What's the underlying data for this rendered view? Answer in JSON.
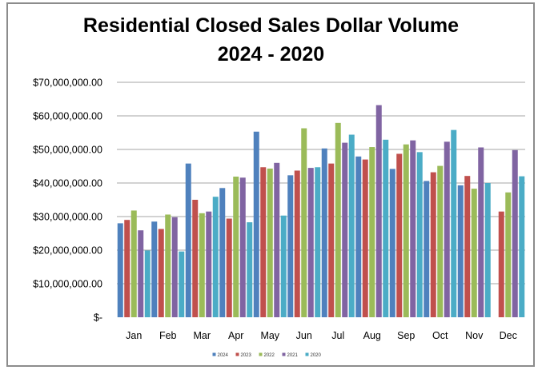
{
  "chart_data": {
    "type": "bar",
    "title": "Residential Closed Sales Dollar Volume",
    "subtitle": "2024 - 2020",
    "xlabel": "",
    "ylabel": "",
    "ylim": [
      0,
      70000000
    ],
    "grid": true,
    "legend_position": "bottom",
    "y_ticks": [
      {
        "value": 0,
        "label": "$-"
      },
      {
        "value": 10000000,
        "label": "$10,000,000.00"
      },
      {
        "value": 20000000,
        "label": "$20,000,000.00"
      },
      {
        "value": 30000000,
        "label": "$30,000,000.00"
      },
      {
        "value": 40000000,
        "label": "$40,000,000.00"
      },
      {
        "value": 50000000,
        "label": "$50,000,000.00"
      },
      {
        "value": 60000000,
        "label": "$60,000,000.00"
      },
      {
        "value": 70000000,
        "label": "$70,000,000.00"
      }
    ],
    "categories": [
      "Jan",
      "Feb",
      "Mar",
      "Apr",
      "May",
      "Jun",
      "Jul",
      "Aug",
      "Sep",
      "Oct",
      "Nov",
      "Dec"
    ],
    "series": [
      {
        "name": "2024",
        "color": "#4f81bd",
        "values": [
          28000000,
          28500000,
          45800000,
          38500000,
          55300000,
          42300000,
          50300000,
          47900000,
          44200000,
          40600000,
          39300000,
          null
        ]
      },
      {
        "name": "2023",
        "color": "#c0504d",
        "values": [
          29000000,
          26300000,
          35000000,
          29400000,
          44700000,
          43700000,
          45800000,
          47000000,
          48700000,
          43200000,
          42100000,
          31500000
        ]
      },
      {
        "name": "2022",
        "color": "#9bbb59",
        "values": [
          31800000,
          30600000,
          31000000,
          41900000,
          44300000,
          56300000,
          57900000,
          50700000,
          51500000,
          45100000,
          38300000,
          37200000
        ]
      },
      {
        "name": "2021",
        "color": "#8064a2",
        "values": [
          25900000,
          29800000,
          31500000,
          41600000,
          46000000,
          44500000,
          52000000,
          63200000,
          52700000,
          52300000,
          50600000,
          49800000
        ]
      },
      {
        "name": "2020",
        "color": "#4bacc6",
        "values": [
          19900000,
          19600000,
          35900000,
          28300000,
          30300000,
          44700000,
          54400000,
          52900000,
          49200000,
          55800000,
          40000000,
          42000000
        ]
      }
    ]
  }
}
